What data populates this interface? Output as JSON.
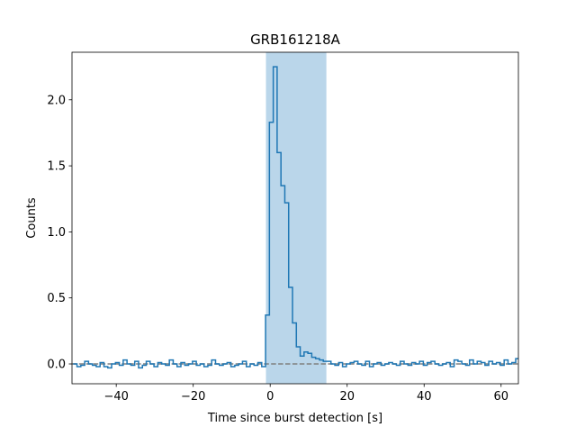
{
  "chart_data": {
    "type": "line",
    "title": "GRB161218A",
    "xlabel": "Time since burst detection [s]",
    "ylabel": "Counts",
    "xlim": [
      -51.5,
      64.5
    ],
    "ylim": [
      -0.15,
      2.36
    ],
    "x_ticks": [
      -40,
      -20,
      0,
      20,
      40,
      60
    ],
    "x_tick_labels": [
      "−40",
      "−20",
      "0",
      "20",
      "40",
      "60"
    ],
    "y_ticks": [
      0.0,
      0.5,
      1.0,
      1.5,
      2.0
    ],
    "y_tick_labels": [
      "0.0",
      "0.5",
      "1.0",
      "1.5",
      "2.0"
    ],
    "grid": false,
    "highlight_span": {
      "x_start": -1.1,
      "x_end": 14.6,
      "color": "#bad6ea"
    },
    "baseline": {
      "y": 0.0,
      "style": "dashed",
      "color": "#808080"
    },
    "series": [
      {
        "step": "post",
        "color": "#1f77b4",
        "x": [
          -51.2,
          -50.2,
          -49.2,
          -48.2,
          -47.2,
          -46.2,
          -45.2,
          -44.2,
          -43.2,
          -42.2,
          -41.2,
          -40.2,
          -39.2,
          -38.2,
          -37.2,
          -36.2,
          -35.2,
          -34.2,
          -33.2,
          -32.2,
          -31.2,
          -30.2,
          -29.2,
          -28.2,
          -27.2,
          -26.2,
          -25.2,
          -24.2,
          -23.2,
          -22.2,
          -21.2,
          -20.2,
          -19.2,
          -18.2,
          -17.2,
          -16.2,
          -15.2,
          -14.2,
          -13.2,
          -12.2,
          -11.2,
          -10.2,
          -9.2,
          -8.2,
          -7.2,
          -6.2,
          -5.2,
          -4.2,
          -3.2,
          -2.2,
          -1.2,
          -0.2,
          0.8,
          1.8,
          2.8,
          3.8,
          4.8,
          5.8,
          6.8,
          7.8,
          8.8,
          9.8,
          10.8,
          11.8,
          12.8,
          13.8,
          14.8,
          15.8,
          16.8,
          17.8,
          18.8,
          19.8,
          20.8,
          21.8,
          22.8,
          23.8,
          24.8,
          25.8,
          26.8,
          27.8,
          28.8,
          29.8,
          30.8,
          31.8,
          32.8,
          33.8,
          34.8,
          35.8,
          36.8,
          37.8,
          38.8,
          39.8,
          40.8,
          41.8,
          42.8,
          43.8,
          44.8,
          45.8,
          46.8,
          47.8,
          48.8,
          49.8,
          50.8,
          51.8,
          52.8,
          53.8,
          54.8,
          55.8,
          56.8,
          57.8,
          58.8,
          59.8,
          60.8,
          61.8,
          62.8,
          63.8,
          64.5
        ],
        "y": [
          0.0,
          -0.02,
          -0.01,
          0.02,
          0.0,
          -0.01,
          -0.02,
          0.01,
          -0.02,
          -0.03,
          0.0,
          0.01,
          -0.01,
          0.03,
          0.0,
          -0.01,
          0.02,
          -0.03,
          -0.01,
          0.02,
          0.0,
          -0.02,
          0.01,
          0.0,
          -0.01,
          0.03,
          0.0,
          -0.02,
          0.01,
          -0.01,
          0.0,
          0.02,
          -0.01,
          0.0,
          -0.02,
          -0.01,
          0.03,
          0.0,
          -0.01,
          0.0,
          0.01,
          -0.02,
          -0.01,
          0.0,
          0.02,
          -0.02,
          0.0,
          -0.01,
          0.01,
          -0.02,
          0.37,
          1.83,
          2.25,
          1.6,
          1.35,
          1.22,
          0.58,
          0.31,
          0.13,
          0.06,
          0.09,
          0.08,
          0.05,
          0.04,
          0.03,
          0.02,
          0.02,
          0.0,
          -0.01,
          0.01,
          -0.02,
          0.0,
          0.01,
          0.02,
          0.0,
          -0.01,
          0.02,
          -0.02,
          0.0,
          0.01,
          -0.01,
          0.0,
          0.01,
          0.0,
          -0.01,
          0.02,
          0.0,
          -0.01,
          0.01,
          0.0,
          0.02,
          -0.01,
          0.01,
          0.02,
          0.0,
          -0.01,
          0.0,
          0.01,
          -0.02,
          0.03,
          0.02,
          0.0,
          -0.01,
          0.03,
          0.0,
          0.02,
          0.01,
          -0.01,
          0.02,
          0.0,
          0.01,
          -0.01,
          0.03,
          0.0,
          0.01,
          0.04,
          0.04
        ]
      }
    ]
  }
}
